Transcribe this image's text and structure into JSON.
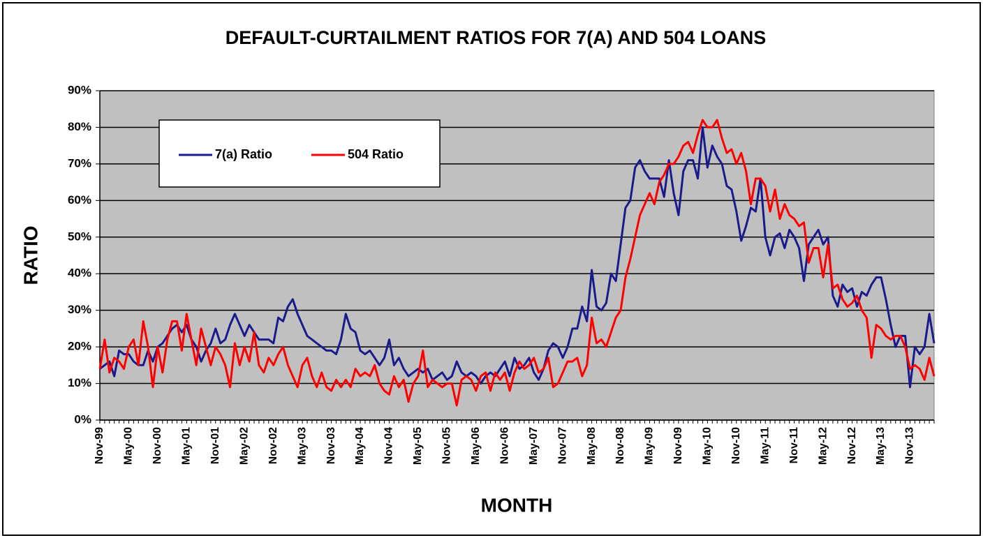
{
  "chart_data": {
    "type": "line",
    "title": "DEFAULT-CURTAILMENT RATIOS FOR 7(A) AND 504 LOANS",
    "x_label": "MONTH",
    "y_label": "RATIO",
    "categories": [
      "Nov-99",
      null,
      null,
      null,
      null,
      null,
      "May-00",
      null,
      null,
      null,
      null,
      null,
      "Nov-00",
      null,
      null,
      null,
      null,
      null,
      "May-01",
      null,
      null,
      null,
      null,
      null,
      "Nov-01",
      null,
      null,
      null,
      null,
      null,
      "May-02",
      null,
      null,
      null,
      null,
      null,
      "Nov-02",
      null,
      null,
      null,
      null,
      null,
      "May-03",
      null,
      null,
      null,
      null,
      null,
      "Nov-03",
      null,
      null,
      null,
      null,
      null,
      "May-04",
      null,
      null,
      null,
      null,
      null,
      "Nov-04",
      null,
      null,
      null,
      null,
      null,
      "May-05",
      null,
      null,
      null,
      null,
      null,
      "Nov-05",
      null,
      null,
      null,
      null,
      null,
      "May-06",
      null,
      null,
      null,
      null,
      null,
      "Nov-06",
      null,
      null,
      null,
      null,
      null,
      "May-07",
      null,
      null,
      null,
      null,
      null,
      "Nov-07",
      null,
      null,
      null,
      null,
      null,
      "May-08",
      null,
      null,
      null,
      null,
      null,
      "Nov-08",
      null,
      null,
      null,
      null,
      null,
      "May-09",
      null,
      null,
      null,
      null,
      null,
      "Nov-09",
      null,
      null,
      null,
      null,
      null,
      "May-10",
      null,
      null,
      null,
      null,
      null,
      "Nov-10",
      null,
      null,
      null,
      null,
      null,
      "May-11",
      null,
      null,
      null,
      null,
      null,
      "Nov-11",
      null,
      null,
      null,
      null,
      null,
      "May-12",
      null,
      null,
      null,
      null,
      null,
      "Nov-12",
      null,
      null,
      null,
      null,
      null,
      "May-13",
      null,
      null,
      null,
      null,
      null,
      "Nov-13",
      null,
      null,
      null,
      null,
      null
    ],
    "series": [
      {
        "name": "7(a) Ratio",
        "color": "#1a1a8c",
        "values": [
          14,
          15,
          16,
          12,
          19,
          18,
          18,
          16,
          15,
          15,
          19,
          16,
          20,
          21,
          23,
          25,
          26,
          24,
          26,
          22,
          20,
          16,
          19,
          21,
          25,
          21,
          22,
          26,
          29,
          26,
          23,
          26,
          24,
          22,
          22,
          22,
          21,
          28,
          27,
          31,
          33,
          29,
          26,
          23,
          22,
          21,
          20,
          19,
          19,
          18,
          22,
          29,
          25,
          24,
          19,
          18,
          19,
          17,
          15,
          17,
          22,
          15,
          17,
          14,
          12,
          13,
          14,
          13,
          14,
          11,
          12,
          13,
          11,
          12,
          16,
          13,
          12,
          13,
          12,
          10,
          12,
          13,
          12,
          14,
          16,
          12,
          17,
          14,
          15,
          17,
          13,
          11,
          14,
          19,
          21,
          20,
          17,
          20,
          25,
          25,
          31,
          27,
          41,
          31,
          30,
          32,
          40,
          38,
          48,
          58,
          60,
          69,
          71,
          68,
          66,
          66,
          66,
          61,
          71,
          62,
          56,
          68,
          71,
          71,
          66,
          80,
          69,
          75,
          72,
          70,
          64,
          63,
          57,
          49,
          53,
          58,
          57,
          66,
          50,
          45,
          50,
          51,
          47,
          52,
          50,
          47,
          38,
          48,
          50,
          52,
          48,
          50,
          34,
          31,
          37,
          35,
          36,
          31,
          35,
          34,
          37,
          39,
          39,
          33,
          26,
          20,
          23,
          23,
          9,
          20,
          18,
          20,
          29,
          21
        ]
      },
      {
        "name": "504 Ratio",
        "color": "#ff0000",
        "values": [
          14,
          22,
          13,
          17,
          16,
          14,
          20,
          22,
          15,
          27,
          20,
          9,
          20,
          13,
          22,
          27,
          27,
          19,
          29,
          22,
          15,
          25,
          20,
          15,
          20,
          18,
          15,
          9,
          21,
          15,
          20,
          16,
          24,
          15,
          13,
          17,
          15,
          18,
          20,
          15,
          12,
          9,
          15,
          17,
          12,
          9,
          13,
          9,
          8,
          11,
          9,
          11,
          9,
          14,
          12,
          13,
          12,
          15,
          10,
          8,
          7,
          12,
          9,
          11,
          5,
          10,
          12,
          19,
          9,
          11,
          10,
          9,
          10,
          10,
          4,
          11,
          12,
          11,
          8,
          12,
          13,
          8,
          13,
          11,
          13,
          8,
          13,
          16,
          14,
          15,
          17,
          13,
          14,
          17,
          9,
          10,
          13,
          16,
          16,
          17,
          12,
          15,
          28,
          21,
          22,
          20,
          24,
          28,
          30,
          39,
          44,
          50,
          56,
          59,
          62,
          59,
          65,
          67,
          70,
          70,
          72,
          75,
          76,
          73,
          78,
          82,
          80,
          80,
          82,
          77,
          73,
          74,
          70,
          73,
          68,
          59,
          66,
          66,
          64,
          57,
          63,
          55,
          59,
          56,
          55,
          53,
          54,
          43,
          47,
          47,
          39,
          48,
          36,
          37,
          33,
          31,
          32,
          34,
          30,
          28,
          17,
          26,
          25,
          23,
          22,
          23,
          23,
          20,
          14,
          15,
          14,
          11,
          17,
          12
        ]
      }
    ],
    "ylim": [
      0,
      90
    ],
    "yticks": [
      {
        "value": 0,
        "label": "0%"
      },
      {
        "value": 10,
        "label": "10%"
      },
      {
        "value": 20,
        "label": "20%"
      },
      {
        "value": 30,
        "label": "30%"
      },
      {
        "value": 40,
        "label": "40%"
      },
      {
        "value": 50,
        "label": "50%"
      },
      {
        "value": 60,
        "label": "60%"
      },
      {
        "value": 70,
        "label": "70%"
      },
      {
        "value": 80,
        "label": "80%"
      },
      {
        "value": 90,
        "label": "90%"
      }
    ],
    "grid": true,
    "legend": "upper left"
  }
}
